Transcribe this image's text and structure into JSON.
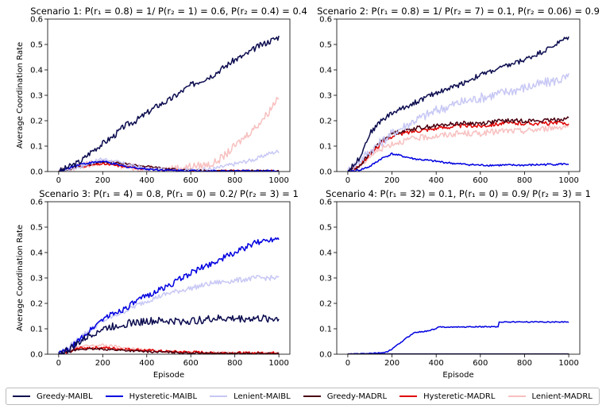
{
  "figure": {
    "legend": {
      "items": [
        {
          "label": "Greedy-MAIBL",
          "color": "#0b0b4f"
        },
        {
          "label": "Hysteretic-MAIBL",
          "color": "#0000e0"
        },
        {
          "label": "Lenient-MAIBL",
          "color": "#c8c8f5"
        },
        {
          "label": "Greedy-MADRL",
          "color": "#4a0010"
        },
        {
          "label": "Hysteretic-MADRL",
          "color": "#e00000"
        },
        {
          "label": "Lenient-MADRL",
          "color": "#f8c0c0"
        }
      ]
    }
  },
  "chart_data": [
    {
      "type": "line",
      "title": "Scenario 1: P(r₁ = 0.8) = 1/ P(r₂ = 1) = 0.6, P(r₂ = 0.4) = 0.4",
      "xlabel": "",
      "ylabel": "Average Coordination Rate",
      "xlim": [
        -50,
        1050
      ],
      "ylim": [
        0,
        0.6
      ],
      "xticks": [
        0,
        200,
        400,
        600,
        800,
        1000
      ],
      "yticks": [
        0.0,
        0.1,
        0.2,
        0.3,
        0.4,
        0.5,
        0.6
      ],
      "series": [
        {
          "name": "Greedy-MAIBL",
          "color": "#0b0b4f",
          "x": [
            0,
            50,
            100,
            150,
            200,
            250,
            300,
            350,
            400,
            450,
            500,
            550,
            600,
            650,
            700,
            750,
            800,
            850,
            900,
            950,
            1000
          ],
          "y": [
            0,
            0.02,
            0.04,
            0.08,
            0.11,
            0.14,
            0.18,
            0.2,
            0.23,
            0.26,
            0.28,
            0.31,
            0.34,
            0.36,
            0.38,
            0.41,
            0.44,
            0.46,
            0.49,
            0.51,
            0.53
          ],
          "noise": 0.012
        },
        {
          "name": "Hysteretic-MAIBL",
          "color": "#0000e0",
          "x": [
            0,
            100,
            200,
            300,
            400,
            500,
            600,
            700,
            800,
            900,
            1000
          ],
          "y": [
            0,
            0.03,
            0.04,
            0.02,
            0.01,
            0.005,
            0.003,
            0.002,
            0.002,
            0.002,
            0.002
          ],
          "noise": 0.004
        },
        {
          "name": "Lenient-MAIBL",
          "color": "#c8c8f5",
          "x": [
            0,
            100,
            200,
            300,
            400,
            500,
            600,
            700,
            750,
            800,
            850,
            900,
            950,
            1000
          ],
          "y": [
            0,
            0.02,
            0.05,
            0.03,
            0.01,
            0.005,
            0.005,
            0.01,
            0.02,
            0.03,
            0.04,
            0.05,
            0.07,
            0.08
          ],
          "noise": 0.008
        },
        {
          "name": "Greedy-MADRL",
          "color": "#4a0010",
          "x": [
            0,
            100,
            200,
            300,
            400,
            500,
            600,
            700,
            800,
            900,
            1000
          ],
          "y": [
            0,
            0.02,
            0.04,
            0.03,
            0.02,
            0.01,
            0.005,
            0.003,
            0.002,
            0.002,
            0.002
          ],
          "noise": 0.004
        },
        {
          "name": "Hysteretic-MADRL",
          "color": "#e00000",
          "x": [
            0,
            100,
            200,
            300,
            400,
            500,
            600,
            700,
            800,
            900,
            1000
          ],
          "y": [
            0,
            0.02,
            0.03,
            0.02,
            0.01,
            0.005,
            0.003,
            0.002,
            0.002,
            0.002,
            0.002
          ],
          "noise": 0.004
        },
        {
          "name": "Lenient-MADRL",
          "color": "#f8c0c0",
          "x": [
            0,
            100,
            200,
            300,
            400,
            500,
            600,
            700,
            750,
            800,
            850,
            900,
            950,
            1000
          ],
          "y": [
            0,
            0.02,
            0.04,
            0.02,
            0.01,
            0.01,
            0.02,
            0.03,
            0.06,
            0.1,
            0.14,
            0.18,
            0.23,
            0.3
          ],
          "noise": 0.015
        }
      ]
    },
    {
      "type": "line",
      "title": "Scenario 2: P(r₁ = 0.8) = 1/ P(r₂ = 7) = 0.1, P(r₂ = 0.06) = 0.9",
      "xlabel": "",
      "ylabel": "",
      "xlim": [
        -50,
        1050
      ],
      "ylim": [
        0,
        0.6
      ],
      "xticks": [
        0,
        200,
        400,
        600,
        800,
        1000
      ],
      "yticks": [
        0.0,
        0.1,
        0.2,
        0.3,
        0.4,
        0.5,
        0.6
      ],
      "series": [
        {
          "name": "Greedy-MAIBL",
          "color": "#0b0b4f",
          "x": [
            0,
            50,
            100,
            150,
            200,
            300,
            400,
            500,
            600,
            700,
            800,
            900,
            1000
          ],
          "y": [
            0,
            0.05,
            0.15,
            0.2,
            0.23,
            0.27,
            0.31,
            0.34,
            0.38,
            0.41,
            0.44,
            0.48,
            0.53
          ],
          "noise": 0.01
        },
        {
          "name": "Hysteretic-MAIBL",
          "color": "#0000e0",
          "x": [
            0,
            50,
            100,
            150,
            200,
            250,
            300,
            400,
            500,
            600,
            700,
            800,
            900,
            1000
          ],
          "y": [
            0,
            0.005,
            0.02,
            0.05,
            0.07,
            0.06,
            0.05,
            0.04,
            0.03,
            0.025,
            0.025,
            0.025,
            0.028,
            0.03
          ],
          "noise": 0.004
        },
        {
          "name": "Lenient-MAIBL",
          "color": "#c8c8f5",
          "x": [
            0,
            100,
            200,
            300,
            400,
            500,
            600,
            700,
            800,
            900,
            1000
          ],
          "y": [
            0,
            0.08,
            0.15,
            0.2,
            0.24,
            0.27,
            0.29,
            0.31,
            0.33,
            0.35,
            0.37
          ],
          "noise": 0.02
        },
        {
          "name": "Greedy-MADRL",
          "color": "#4a0010",
          "x": [
            0,
            50,
            100,
            150,
            200,
            300,
            400,
            500,
            600,
            700,
            800,
            900,
            1000
          ],
          "y": [
            0,
            0.02,
            0.07,
            0.12,
            0.15,
            0.17,
            0.18,
            0.19,
            0.19,
            0.2,
            0.2,
            0.2,
            0.21
          ],
          "noise": 0.008
        },
        {
          "name": "Hysteretic-MADRL",
          "color": "#e00000",
          "x": [
            0,
            50,
            100,
            150,
            200,
            300,
            400,
            500,
            600,
            700,
            800,
            900,
            1000
          ],
          "y": [
            0,
            0.02,
            0.07,
            0.11,
            0.14,
            0.16,
            0.17,
            0.18,
            0.18,
            0.19,
            0.19,
            0.19,
            0.19
          ],
          "noise": 0.008
        },
        {
          "name": "Lenient-MADRL",
          "color": "#f8c0c0",
          "x": [
            0,
            50,
            100,
            150,
            200,
            300,
            400,
            500,
            600,
            700,
            800,
            900,
            1000
          ],
          "y": [
            0,
            0.02,
            0.06,
            0.09,
            0.11,
            0.13,
            0.14,
            0.15,
            0.15,
            0.16,
            0.16,
            0.17,
            0.18
          ],
          "noise": 0.012
        }
      ]
    },
    {
      "type": "line",
      "title": "Scenario 3: P(r₁ = 4) = 0.8, P(r₁ = 0) = 0.2/ P(r₂ = 3) = 1",
      "xlabel": "Episode",
      "ylabel": "Average Coordination Rate",
      "xlim": [
        -50,
        1050
      ],
      "ylim": [
        0,
        0.6
      ],
      "xticks": [
        0,
        200,
        400,
        600,
        800,
        1000
      ],
      "yticks": [
        0.0,
        0.1,
        0.2,
        0.3,
        0.4,
        0.5,
        0.6
      ],
      "series": [
        {
          "name": "Greedy-MAIBL",
          "color": "#0b0b4f",
          "x": [
            0,
            50,
            100,
            150,
            200,
            300,
            400,
            500,
            600,
            700,
            800,
            900,
            1000
          ],
          "y": [
            0,
            0.02,
            0.05,
            0.08,
            0.1,
            0.12,
            0.13,
            0.13,
            0.13,
            0.14,
            0.14,
            0.14,
            0.14
          ],
          "noise": 0.015
        },
        {
          "name": "Hysteretic-MAIBL",
          "color": "#0000e0",
          "x": [
            0,
            50,
            100,
            150,
            200,
            300,
            400,
            500,
            600,
            700,
            800,
            900,
            1000
          ],
          "y": [
            0,
            0.02,
            0.06,
            0.1,
            0.14,
            0.18,
            0.23,
            0.27,
            0.32,
            0.36,
            0.4,
            0.44,
            0.46
          ],
          "noise": 0.012
        },
        {
          "name": "Lenient-MAIBL",
          "color": "#c8c8f5",
          "x": [
            0,
            50,
            100,
            150,
            200,
            300,
            400,
            500,
            600,
            700,
            800,
            900,
            1000
          ],
          "y": [
            0,
            0.03,
            0.07,
            0.1,
            0.13,
            0.17,
            0.21,
            0.24,
            0.26,
            0.28,
            0.29,
            0.3,
            0.3
          ],
          "noise": 0.01
        },
        {
          "name": "Greedy-MADRL",
          "color": "#4a0010",
          "x": [
            0,
            100,
            200,
            300,
            400,
            500,
            600,
            700,
            800,
            900,
            1000
          ],
          "y": [
            0,
            0.02,
            0.02,
            0.015,
            0.01,
            0.008,
            0.005,
            0.003,
            0.002,
            0.002,
            0.002
          ],
          "noise": 0.004
        },
        {
          "name": "Hysteretic-MADRL",
          "color": "#e00000",
          "x": [
            0,
            100,
            200,
            300,
            400,
            500,
            600,
            700,
            800,
            900,
            1000
          ],
          "y": [
            0,
            0.025,
            0.025,
            0.02,
            0.015,
            0.01,
            0.008,
            0.006,
            0.005,
            0.005,
            0.005
          ],
          "noise": 0.005
        },
        {
          "name": "Lenient-MADRL",
          "color": "#f8c0c0",
          "x": [
            0,
            100,
            200,
            300,
            400,
            500,
            600,
            700,
            800,
            900,
            1000
          ],
          "y": [
            0,
            0.03,
            0.035,
            0.025,
            0.015,
            0.01,
            0.008,
            0.006,
            0.005,
            0.005,
            0.005
          ],
          "noise": 0.006
        }
      ]
    },
    {
      "type": "line",
      "title": "Scenario 4: P(r₁ = 32) = 0.1, P(r₁ = 0) = 0.9/ P(r₂ = 3) = 1",
      "xlabel": "Episode",
      "ylabel": "",
      "xlim": [
        -50,
        1050
      ],
      "ylim": [
        0,
        0.6
      ],
      "xticks": [
        0,
        200,
        400,
        600,
        800,
        1000
      ],
      "yticks": [
        0.0,
        0.1,
        0.2,
        0.3,
        0.4,
        0.5,
        0.6
      ],
      "series": [
        {
          "name": "Greedy-MAIBL",
          "color": "#0b0b4f",
          "x": [
            0,
            1000
          ],
          "y": [
            0.001,
            0.001
          ],
          "noise": 0
        },
        {
          "name": "Hysteretic-MAIBL",
          "color": "#0000e0",
          "x": [
            0,
            150,
            180,
            200,
            230,
            260,
            300,
            350,
            400,
            410,
            500,
            600,
            680,
            681,
            700,
            800,
            900,
            1000
          ],
          "y": [
            0,
            0.005,
            0.01,
            0.02,
            0.04,
            0.06,
            0.085,
            0.09,
            0.1,
            0.107,
            0.107,
            0.108,
            0.108,
            0.127,
            0.127,
            0.127,
            0.127,
            0.127
          ],
          "noise": 0.002
        },
        {
          "name": "Lenient-MAIBL",
          "color": "#c8c8f5",
          "x": [
            0,
            300,
            1000
          ],
          "y": [
            0.001,
            0.002,
            0.001
          ],
          "noise": 0
        },
        {
          "name": "Greedy-MADRL",
          "color": "#4a0010",
          "x": [
            0,
            1000
          ],
          "y": [
            0.001,
            0.001
          ],
          "noise": 0
        },
        {
          "name": "Hysteretic-MADRL",
          "color": "#e00000",
          "x": [
            0,
            1000
          ],
          "y": [
            0.001,
            0.001
          ],
          "noise": 0
        },
        {
          "name": "Lenient-MADRL",
          "color": "#f8c0c0",
          "x": [
            0,
            1000
          ],
          "y": [
            0.002,
            0.002
          ],
          "noise": 0
        }
      ]
    }
  ]
}
